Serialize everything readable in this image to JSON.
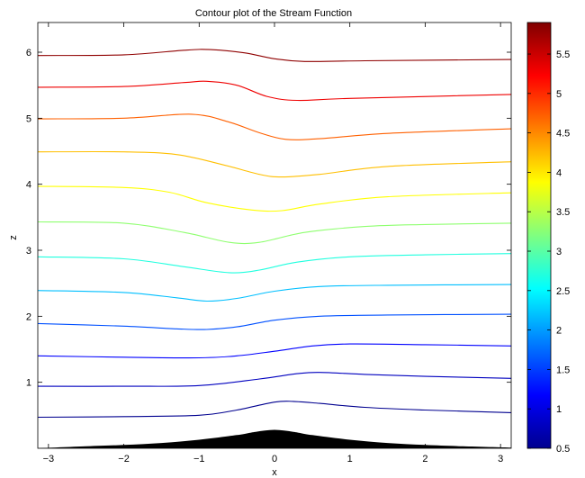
{
  "chart_data": {
    "type": "contour",
    "title": "Contour plot of the Stream Function",
    "xlabel": "x",
    "ylabel": "z",
    "xlim": [
      -3.1416,
      3.1416
    ],
    "ylim": [
      0,
      6.45
    ],
    "xticks": [
      -3,
      -2,
      -1,
      0,
      1,
      2,
      3
    ],
    "yticks": [
      1,
      2,
      3,
      4,
      5,
      6
    ],
    "colorbar": {
      "lim": [
        0.5,
        5.9
      ],
      "ticks": [
        0.5,
        1,
        1.5,
        2,
        2.5,
        3,
        3.5,
        4,
        4.5,
        5,
        5.5
      ],
      "colormap": "jet"
    },
    "grid": false,
    "topography": {
      "x": [
        -3.1416,
        -2.5,
        -2.0,
        -1.5,
        -1.0,
        -0.5,
        -0.25,
        0.0,
        0.25,
        0.5,
        1.0,
        1.5,
        2.0,
        2.5,
        3.1416
      ],
      "z": [
        0.0,
        0.03,
        0.05,
        0.08,
        0.13,
        0.2,
        0.25,
        0.28,
        0.25,
        0.2,
        0.13,
        0.08,
        0.05,
        0.03,
        0.01
      ],
      "color": "#000000"
    },
    "series": [
      {
        "color": "#00008f",
        "points": [
          [
            -3.1416,
            0.47
          ],
          [
            -2.0,
            0.48
          ],
          [
            -1.0,
            0.5
          ],
          [
            -0.5,
            0.58
          ],
          [
            0.0,
            0.7
          ],
          [
            0.25,
            0.71
          ],
          [
            0.6,
            0.68
          ],
          [
            1.2,
            0.62
          ],
          [
            2.0,
            0.58
          ],
          [
            3.1416,
            0.54
          ]
        ]
      },
      {
        "color": "#0000bf",
        "points": [
          [
            -3.1416,
            0.94
          ],
          [
            -2.0,
            0.94
          ],
          [
            -1.0,
            0.95
          ],
          [
            -0.2,
            1.05
          ],
          [
            0.3,
            1.13
          ],
          [
            0.6,
            1.15
          ],
          [
            1.2,
            1.12
          ],
          [
            2.0,
            1.09
          ],
          [
            3.1416,
            1.06
          ]
        ]
      },
      {
        "color": "#0000ff",
        "points": [
          [
            -3.1416,
            1.4
          ],
          [
            -2.0,
            1.38
          ],
          [
            -1.0,
            1.37
          ],
          [
            -0.5,
            1.4
          ],
          [
            0.0,
            1.47
          ],
          [
            0.5,
            1.55
          ],
          [
            1.0,
            1.58
          ],
          [
            2.0,
            1.57
          ],
          [
            3.1416,
            1.55
          ]
        ]
      },
      {
        "color": "#0050ff",
        "points": [
          [
            -3.1416,
            1.89
          ],
          [
            -2.0,
            1.85
          ],
          [
            -1.3,
            1.81
          ],
          [
            -0.9,
            1.8
          ],
          [
            -0.5,
            1.84
          ],
          [
            0.0,
            1.94
          ],
          [
            0.6,
            2.0
          ],
          [
            1.5,
            2.02
          ],
          [
            3.1416,
            2.03
          ]
        ]
      },
      {
        "color": "#00bfff",
        "points": [
          [
            -3.1416,
            2.39
          ],
          [
            -2.0,
            2.36
          ],
          [
            -1.3,
            2.28
          ],
          [
            -0.9,
            2.23
          ],
          [
            -0.5,
            2.27
          ],
          [
            0.0,
            2.38
          ],
          [
            0.6,
            2.45
          ],
          [
            1.5,
            2.47
          ],
          [
            3.1416,
            2.48
          ]
        ]
      },
      {
        "color": "#20ffdf",
        "points": [
          [
            -3.1416,
            2.9
          ],
          [
            -2.0,
            2.87
          ],
          [
            -1.2,
            2.75
          ],
          [
            -0.6,
            2.66
          ],
          [
            -0.2,
            2.7
          ],
          [
            0.3,
            2.82
          ],
          [
            1.0,
            2.9
          ],
          [
            2.0,
            2.93
          ],
          [
            3.1416,
            2.95
          ]
        ]
      },
      {
        "color": "#8fff70",
        "points": [
          [
            -3.1416,
            3.43
          ],
          [
            -2.0,
            3.41
          ],
          [
            -1.2,
            3.27
          ],
          [
            -0.6,
            3.12
          ],
          [
            -0.2,
            3.12
          ],
          [
            0.4,
            3.27
          ],
          [
            1.2,
            3.36
          ],
          [
            2.0,
            3.39
          ],
          [
            3.1416,
            3.41
          ]
        ]
      },
      {
        "color": "#ffff00",
        "points": [
          [
            -3.1416,
            3.97
          ],
          [
            -2.0,
            3.95
          ],
          [
            -1.4,
            3.88
          ],
          [
            -0.9,
            3.72
          ],
          [
            -0.3,
            3.61
          ],
          [
            0.1,
            3.6
          ],
          [
            0.6,
            3.7
          ],
          [
            1.5,
            3.81
          ],
          [
            3.1416,
            3.87
          ]
        ]
      },
      {
        "color": "#ffbf00",
        "points": [
          [
            -3.1416,
            4.49
          ],
          [
            -2.0,
            4.49
          ],
          [
            -1.3,
            4.45
          ],
          [
            -0.7,
            4.3
          ],
          [
            -0.2,
            4.15
          ],
          [
            0.1,
            4.11
          ],
          [
            0.6,
            4.15
          ],
          [
            1.5,
            4.27
          ],
          [
            3.1416,
            4.34
          ]
        ]
      },
      {
        "color": "#ff6000",
        "points": [
          [
            -3.1416,
            4.99
          ],
          [
            -2.0,
            5.0
          ],
          [
            -1.1,
            5.06
          ],
          [
            -0.6,
            4.94
          ],
          [
            -0.2,
            4.78
          ],
          [
            0.15,
            4.68
          ],
          [
            0.6,
            4.69
          ],
          [
            1.5,
            4.77
          ],
          [
            3.1416,
            4.84
          ]
        ]
      },
      {
        "color": "#ef0000",
        "points": [
          [
            -3.1416,
            5.47
          ],
          [
            -2.0,
            5.48
          ],
          [
            -1.2,
            5.54
          ],
          [
            -0.9,
            5.56
          ],
          [
            -0.5,
            5.5
          ],
          [
            -0.1,
            5.33
          ],
          [
            0.3,
            5.27
          ],
          [
            1.0,
            5.3
          ],
          [
            3.1416,
            5.36
          ]
        ]
      },
      {
        "color": "#8f0000",
        "points": [
          [
            -3.1416,
            5.95
          ],
          [
            -2.0,
            5.96
          ],
          [
            -1.2,
            6.03
          ],
          [
            -0.85,
            6.04
          ],
          [
            -0.4,
            5.99
          ],
          [
            0.0,
            5.9
          ],
          [
            0.4,
            5.86
          ],
          [
            1.2,
            5.87
          ],
          [
            3.1416,
            5.89
          ]
        ]
      }
    ]
  }
}
